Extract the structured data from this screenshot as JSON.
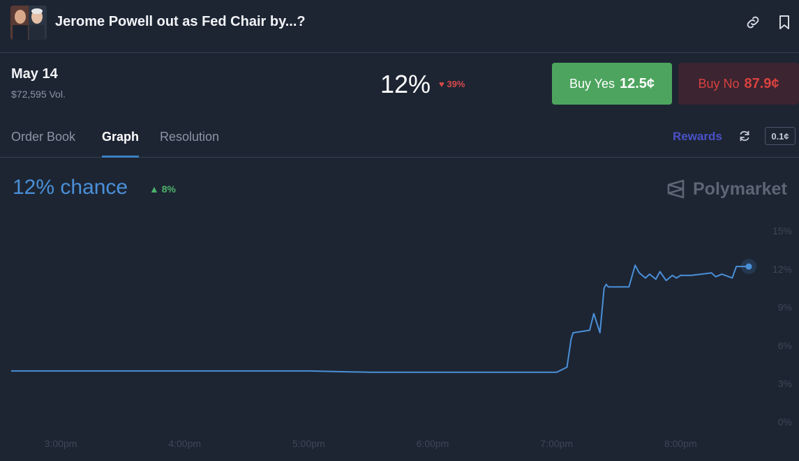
{
  "header": {
    "title": "Jerome Powell out as Fed Chair by...?",
    "thumbnail_icon": "market-thumbnail",
    "link_icon": "link-icon",
    "bookmark_icon": "bookmark-icon"
  },
  "market": {
    "date": "May 14",
    "volume": "$72,595 Vol.",
    "probability": "12%",
    "change": "39%",
    "change_direction": "down",
    "buy_yes_label": "Buy Yes",
    "buy_yes_price": "12.5¢",
    "buy_no_label": "Buy No",
    "buy_no_price": "87.9¢"
  },
  "tabs": [
    {
      "label": "Order Book",
      "active": false
    },
    {
      "label": "Graph",
      "active": true
    },
    {
      "label": "Resolution",
      "active": false
    }
  ],
  "toolbar": {
    "rewards_label": "Rewards",
    "spread_label": "0.1¢"
  },
  "graph": {
    "chance_label": "12% chance",
    "chance_change": "8%",
    "brand": "Polymarket"
  },
  "colors": {
    "background": "#1d2533",
    "line": "#4a90d9",
    "yes": "#4da45e",
    "no": "#d9423f",
    "up": "#4db36a",
    "rewards": "#4a52c8"
  },
  "chart_data": {
    "type": "line",
    "title": "",
    "xlabel": "",
    "ylabel": "",
    "x_ticks": [
      "3:00pm",
      "4:00pm",
      "5:00pm",
      "6:00pm",
      "7:00pm",
      "8:00pm"
    ],
    "y_ticks": [
      "15%",
      "12%",
      "9%",
      "6%",
      "3%",
      "0%"
    ],
    "ylim": [
      0,
      15
    ],
    "xlim": [
      "2:36pm",
      "8:36pm"
    ],
    "grid": false,
    "series": [
      {
        "x": [
          "2:36pm",
          "3:00pm",
          "3:30pm",
          "4:00pm",
          "4:30pm",
          "5:00pm",
          "5:30pm",
          "6:00pm",
          "6:30pm",
          "7:00pm",
          "7:05pm",
          "7:07pm",
          "7:08pm",
          "7:16pm",
          "7:18pm",
          "7:21pm",
          "7:23pm",
          "7:24pm",
          "7:25pm",
          "7:30pm",
          "7:35pm",
          "7:38pm",
          "7:40pm",
          "7:43pm",
          "7:45pm",
          "7:48pm",
          "7:50pm",
          "7:53pm",
          "7:56pm",
          "7:58pm",
          "8:00pm",
          "8:05pm",
          "8:10pm",
          "8:15pm",
          "8:17pm",
          "8:20pm",
          "8:25pm",
          "8:27pm",
          "8:30pm",
          "8:33pm"
        ],
        "values": [
          4.0,
          4.0,
          4.0,
          4.0,
          4.0,
          4.0,
          3.9,
          3.9,
          3.9,
          3.9,
          4.3,
          6.5,
          7.0,
          7.2,
          8.5,
          7.0,
          10.5,
          10.8,
          10.6,
          10.6,
          10.6,
          12.3,
          11.7,
          11.3,
          11.6,
          11.2,
          11.8,
          11.1,
          11.5,
          11.3,
          11.5,
          11.5,
          11.6,
          11.7,
          11.4,
          11.6,
          11.3,
          12.2,
          12.2,
          12.2
        ]
      }
    ]
  }
}
